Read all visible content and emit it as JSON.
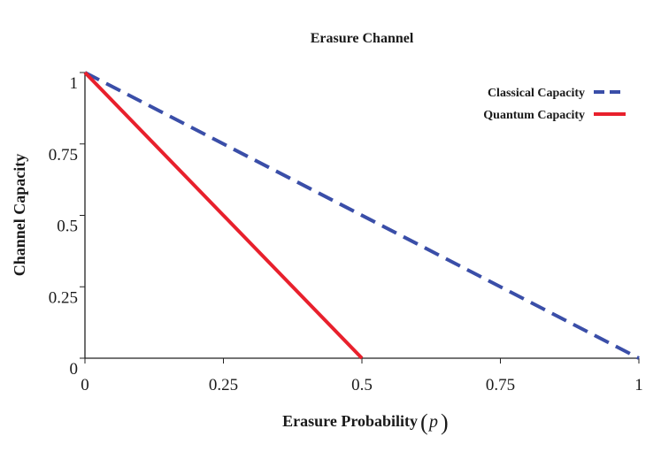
{
  "chart_data": {
    "type": "line",
    "title": "Erasure Channel",
    "xlabel": "Erasure Probability",
    "xlabel_var": "p",
    "ylabel": "Channel Capacity",
    "xlim": [
      0,
      1
    ],
    "ylim": [
      0,
      1
    ],
    "x_ticks": [
      0,
      0.25,
      0.5,
      0.75,
      1
    ],
    "x_tick_labels": [
      "0",
      "0.25",
      "0.5",
      "0.75",
      "1"
    ],
    "y_ticks": [
      0,
      0.25,
      0.5,
      0.75,
      1
    ],
    "y_tick_labels": [
      "0",
      "0.25",
      "0.5",
      "0.75",
      "1"
    ],
    "grid": false,
    "legend_position": "top-right",
    "series": [
      {
        "name": "Classical Capacity",
        "x": [
          0,
          1
        ],
        "y": [
          1,
          0
        ],
        "color": "#3a4ea8",
        "style": "dashed"
      },
      {
        "name": "Quantum Capacity",
        "x": [
          0,
          0.5
        ],
        "y": [
          1,
          0
        ],
        "color": "#e8202c",
        "style": "solid"
      }
    ]
  }
}
